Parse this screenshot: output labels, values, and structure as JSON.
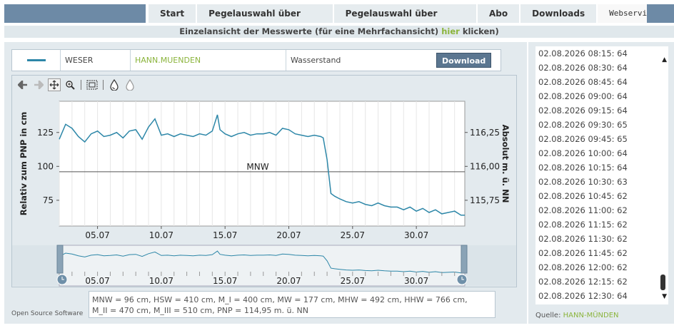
{
  "nav": {
    "tabs": [
      {
        "label": "Start"
      },
      {
        "label": "Pegelauswahl über Karte"
      },
      {
        "label": "Pegelauswahl über Tabelle"
      },
      {
        "label": "Abo"
      },
      {
        "label": "Downloads"
      },
      {
        "label": "Webservices"
      }
    ]
  },
  "banner": {
    "text_before": "Einzelansicht der Messwerte (für eine Mehrfachansicht)",
    "link": "hier",
    "text_after": "klicken)"
  },
  "infobar": {
    "river": "WESER",
    "station": "HANN.MUENDEN",
    "parameter": "Wasserstand",
    "download_label": "Download",
    "series_color": "#2d87a8"
  },
  "toolbar": {
    "icons": [
      "arrow-left-icon",
      "arrow-right-icon",
      "pan-icon",
      "zoom-icon",
      "zoom-extent-icon",
      "drop-dark-icon",
      "drop-light-icon"
    ]
  },
  "chart_data": {
    "type": "line",
    "title": "",
    "ylabel": "Relativ zum PNP in cm",
    "y2label": "Absolut m. ü. NN",
    "ylim": [
      56,
      148
    ],
    "yticks": [
      75,
      100,
      125
    ],
    "y2ticks": [
      "115,75",
      "116,00",
      "116,25"
    ],
    "xticks": [
      "05.07",
      "10.07",
      "15.07",
      "20.07",
      "25.07",
      "30.07"
    ],
    "xtick_days": [
      5,
      10,
      15,
      20,
      25,
      30
    ],
    "xlim": [
      2,
      33.8
    ],
    "mnw": {
      "label": "MNW",
      "value": 96
    },
    "series": [
      {
        "color": "#2d87a8",
        "x": [
          2.0,
          2.5,
          3.0,
          3.5,
          4.0,
          4.5,
          5.0,
          5.5,
          6.0,
          6.5,
          7.0,
          7.5,
          8.0,
          8.5,
          9.0,
          9.5,
          10.0,
          10.5,
          11.0,
          11.5,
          12.0,
          12.5,
          13.0,
          13.5,
          14.0,
          14.4,
          14.6,
          15.0,
          15.5,
          16.0,
          16.5,
          17.0,
          17.5,
          18.0,
          18.5,
          19.0,
          19.5,
          20.0,
          20.5,
          21.0,
          21.5,
          22.0,
          22.5,
          22.7,
          23.0,
          23.3,
          23.6,
          24.0,
          24.5,
          25.0,
          25.5,
          26.0,
          26.5,
          27.0,
          27.5,
          28.0,
          28.5,
          29.0,
          29.5,
          30.0,
          30.5,
          31.0,
          31.5,
          32.0,
          32.5,
          33.0,
          33.5,
          33.8
        ],
        "values": [
          120,
          131,
          128,
          122,
          118,
          124,
          126,
          122,
          123,
          125,
          121,
          126,
          127,
          120,
          129,
          135,
          123,
          124,
          122,
          124,
          123,
          122,
          124,
          123,
          126,
          138,
          127,
          124,
          122,
          124,
          125,
          123,
          124,
          124,
          125,
          123,
          128,
          127,
          124,
          123,
          122,
          123,
          122,
          121,
          105,
          80,
          78,
          76,
          74,
          73,
          74,
          72,
          71,
          73,
          71,
          70,
          70,
          68,
          70,
          67,
          69,
          66,
          68,
          65,
          66,
          67,
          64,
          64
        ]
      }
    ]
  },
  "meta": {
    "line1": "MNW = 96 cm, HSW = 410 cm, M_I = 400 cm, MW = 177 cm, MHW = 492 cm, HHW = 766 cm,",
    "line2": "M_II = 470 cm, M_III = 510 cm, PNP = 114,95 m. ü. NN"
  },
  "footer": {
    "left": "Open Source Software"
  },
  "list": {
    "rows": [
      "02.08.2026 08:15: 64",
      "02.08.2026 08:30: 64",
      "02.08.2026 08:45: 64",
      "02.08.2026 09:00: 64",
      "02.08.2026 09:15: 64",
      "02.08.2026 09:30: 65",
      "02.08.2026 09:45: 65",
      "02.08.2026 10:00: 64",
      "02.08.2026 10:15: 64",
      "02.08.2026 10:30: 63",
      "02.08.2026 10:45: 62",
      "02.08.2026 11:00: 62",
      "02.08.2026 11:15: 62",
      "02.08.2026 11:30: 62",
      "02.08.2026 11:45: 62",
      "02.08.2026 12:00: 62",
      "02.08.2026 12:15: 62",
      "02.08.2026 12:30: 64"
    ]
  },
  "source": {
    "label": "Quelle:",
    "station": "HANN-MÜNDEN"
  }
}
